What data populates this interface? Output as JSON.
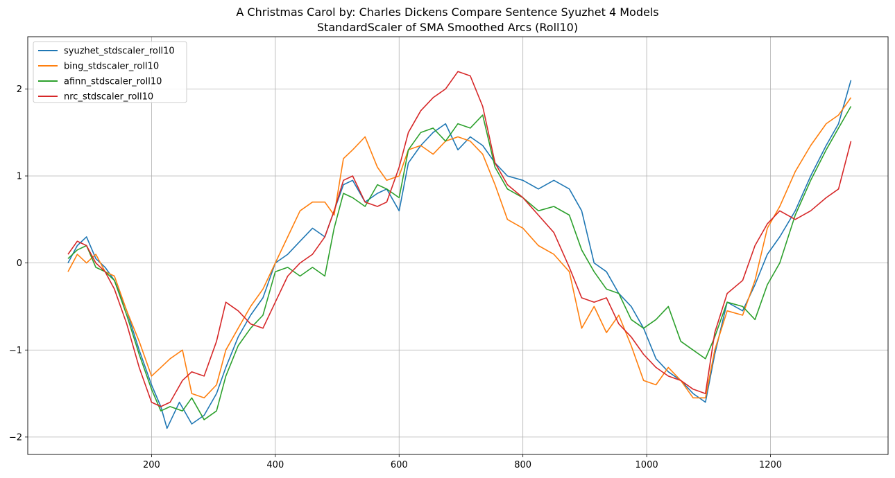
{
  "chart_data": {
    "type": "line",
    "title": "A Christmas Carol by: Charles Dickens Compare Sentence Syuzhet 4 Models",
    "subtitle": "StandardScaler of SMA Smoothed Arcs (Roll10)",
    "xlabel": "",
    "ylabel": "",
    "xlim": [
      0,
      1390
    ],
    "ylim": [
      -2.2,
      2.6
    ],
    "x_ticks": [
      200,
      400,
      600,
      800,
      1000,
      1200
    ],
    "y_ticks": [
      -2,
      -1,
      0,
      1,
      2
    ],
    "x_tick_labels": [
      "200",
      "400",
      "600",
      "800",
      "1000",
      "1200"
    ],
    "y_tick_labels": [
      "−2",
      "−1",
      "0",
      "1",
      "2"
    ],
    "grid": true,
    "legend_position": "top-left",
    "series": [
      {
        "name": "syuzhet_stdscaler_roll10",
        "color": "#1f77b4",
        "points": [
          [
            65,
            0.0
          ],
          [
            80,
            0.2
          ],
          [
            95,
            0.3
          ],
          [
            110,
            0.05
          ],
          [
            125,
            -0.05
          ],
          [
            140,
            -0.2
          ],
          [
            160,
            -0.55
          ],
          [
            180,
            -1.0
          ],
          [
            200,
            -1.4
          ],
          [
            215,
            -1.65
          ],
          [
            225,
            -1.9
          ],
          [
            245,
            -1.6
          ],
          [
            265,
            -1.85
          ],
          [
            285,
            -1.75
          ],
          [
            305,
            -1.5
          ],
          [
            320,
            -1.2
          ],
          [
            340,
            -0.85
          ],
          [
            360,
            -0.6
          ],
          [
            380,
            -0.4
          ],
          [
            400,
            0.0
          ],
          [
            420,
            0.1
          ],
          [
            440,
            0.25
          ],
          [
            460,
            0.4
          ],
          [
            480,
            0.3
          ],
          [
            495,
            0.6
          ],
          [
            510,
            0.9
          ],
          [
            525,
            0.95
          ],
          [
            545,
            0.7
          ],
          [
            565,
            0.8
          ],
          [
            580,
            0.85
          ],
          [
            600,
            0.6
          ],
          [
            615,
            1.15
          ],
          [
            635,
            1.35
          ],
          [
            655,
            1.5
          ],
          [
            675,
            1.6
          ],
          [
            695,
            1.3
          ],
          [
            715,
            1.45
          ],
          [
            735,
            1.35
          ],
          [
            755,
            1.15
          ],
          [
            775,
            1.0
          ],
          [
            800,
            0.95
          ],
          [
            825,
            0.85
          ],
          [
            850,
            0.95
          ],
          [
            875,
            0.85
          ],
          [
            895,
            0.6
          ],
          [
            915,
            0.0
          ],
          [
            935,
            -0.1
          ],
          [
            955,
            -0.35
          ],
          [
            975,
            -0.5
          ],
          [
            995,
            -0.75
          ],
          [
            1015,
            -1.1
          ],
          [
            1035,
            -1.25
          ],
          [
            1055,
            -1.35
          ],
          [
            1075,
            -1.5
          ],
          [
            1095,
            -1.6
          ],
          [
            1110,
            -1.05
          ],
          [
            1130,
            -0.45
          ],
          [
            1155,
            -0.55
          ],
          [
            1175,
            -0.25
          ],
          [
            1195,
            0.1
          ],
          [
            1215,
            0.3
          ],
          [
            1240,
            0.6
          ],
          [
            1265,
            1.0
          ],
          [
            1290,
            1.35
          ],
          [
            1310,
            1.6
          ],
          [
            1330,
            2.1
          ]
        ]
      },
      {
        "name": "bing_stdscaler_roll10",
        "color": "#ff7f0e",
        "points": [
          [
            65,
            -0.1
          ],
          [
            80,
            0.1
          ],
          [
            95,
            0.0
          ],
          [
            110,
            0.1
          ],
          [
            125,
            -0.1
          ],
          [
            140,
            -0.15
          ],
          [
            160,
            -0.55
          ],
          [
            180,
            -0.9
          ],
          [
            200,
            -1.3
          ],
          [
            215,
            -1.2
          ],
          [
            230,
            -1.1
          ],
          [
            250,
            -1.0
          ],
          [
            265,
            -1.5
          ],
          [
            285,
            -1.55
          ],
          [
            305,
            -1.4
          ],
          [
            320,
            -1.0
          ],
          [
            340,
            -0.75
          ],
          [
            360,
            -0.5
          ],
          [
            380,
            -0.3
          ],
          [
            400,
            0.0
          ],
          [
            420,
            0.3
          ],
          [
            440,
            0.6
          ],
          [
            460,
            0.7
          ],
          [
            480,
            0.7
          ],
          [
            495,
            0.55
          ],
          [
            510,
            1.2
          ],
          [
            525,
            1.3
          ],
          [
            545,
            1.45
          ],
          [
            565,
            1.1
          ],
          [
            580,
            0.95
          ],
          [
            600,
            1.0
          ],
          [
            615,
            1.3
          ],
          [
            635,
            1.35
          ],
          [
            655,
            1.25
          ],
          [
            675,
            1.4
          ],
          [
            695,
            1.45
          ],
          [
            715,
            1.4
          ],
          [
            735,
            1.25
          ],
          [
            755,
            0.9
          ],
          [
            775,
            0.5
          ],
          [
            800,
            0.4
          ],
          [
            825,
            0.2
          ],
          [
            850,
            0.1
          ],
          [
            875,
            -0.1
          ],
          [
            895,
            -0.75
          ],
          [
            915,
            -0.5
          ],
          [
            935,
            -0.8
          ],
          [
            955,
            -0.6
          ],
          [
            975,
            -0.95
          ],
          [
            995,
            -1.35
          ],
          [
            1015,
            -1.4
          ],
          [
            1035,
            -1.2
          ],
          [
            1055,
            -1.35
          ],
          [
            1075,
            -1.55
          ],
          [
            1095,
            -1.55
          ],
          [
            1110,
            -1.0
          ],
          [
            1130,
            -0.55
          ],
          [
            1155,
            -0.6
          ],
          [
            1175,
            -0.2
          ],
          [
            1195,
            0.4
          ],
          [
            1215,
            0.65
          ],
          [
            1240,
            1.05
          ],
          [
            1265,
            1.35
          ],
          [
            1290,
            1.6
          ],
          [
            1310,
            1.7
          ],
          [
            1330,
            1.9
          ]
        ]
      },
      {
        "name": "afinn_stdscaler_roll10",
        "color": "#2ca02c",
        "points": [
          [
            65,
            0.05
          ],
          [
            80,
            0.15
          ],
          [
            95,
            0.2
          ],
          [
            110,
            -0.05
          ],
          [
            125,
            -0.1
          ],
          [
            140,
            -0.2
          ],
          [
            160,
            -0.6
          ],
          [
            180,
            -1.05
          ],
          [
            200,
            -1.45
          ],
          [
            215,
            -1.7
          ],
          [
            230,
            -1.65
          ],
          [
            250,
            -1.7
          ],
          [
            265,
            -1.55
          ],
          [
            285,
            -1.8
          ],
          [
            305,
            -1.7
          ],
          [
            320,
            -1.3
          ],
          [
            340,
            -0.95
          ],
          [
            360,
            -0.75
          ],
          [
            380,
            -0.6
          ],
          [
            400,
            -0.1
          ],
          [
            420,
            -0.05
          ],
          [
            440,
            -0.15
          ],
          [
            460,
            -0.05
          ],
          [
            480,
            -0.15
          ],
          [
            495,
            0.4
          ],
          [
            510,
            0.8
          ],
          [
            525,
            0.75
          ],
          [
            545,
            0.65
          ],
          [
            565,
            0.9
          ],
          [
            580,
            0.85
          ],
          [
            600,
            0.75
          ],
          [
            615,
            1.3
          ],
          [
            635,
            1.5
          ],
          [
            655,
            1.55
          ],
          [
            675,
            1.4
          ],
          [
            695,
            1.6
          ],
          [
            715,
            1.55
          ],
          [
            735,
            1.7
          ],
          [
            755,
            1.1
          ],
          [
            775,
            0.85
          ],
          [
            800,
            0.75
          ],
          [
            825,
            0.6
          ],
          [
            850,
            0.65
          ],
          [
            875,
            0.55
          ],
          [
            895,
            0.15
          ],
          [
            915,
            -0.1
          ],
          [
            935,
            -0.3
          ],
          [
            955,
            -0.35
          ],
          [
            975,
            -0.65
          ],
          [
            995,
            -0.75
          ],
          [
            1015,
            -0.65
          ],
          [
            1035,
            -0.5
          ],
          [
            1055,
            -0.9
          ],
          [
            1075,
            -1.0
          ],
          [
            1095,
            -1.1
          ],
          [
            1110,
            -0.85
          ],
          [
            1130,
            -0.45
          ],
          [
            1155,
            -0.5
          ],
          [
            1175,
            -0.65
          ],
          [
            1195,
            -0.25
          ],
          [
            1215,
            0.0
          ],
          [
            1240,
            0.55
          ],
          [
            1265,
            0.95
          ],
          [
            1290,
            1.3
          ],
          [
            1310,
            1.55
          ],
          [
            1330,
            1.8
          ]
        ]
      },
      {
        "name": "nrc_stdscaler_roll10",
        "color": "#d62728",
        "points": [
          [
            65,
            0.1
          ],
          [
            80,
            0.25
          ],
          [
            95,
            0.2
          ],
          [
            110,
            0.0
          ],
          [
            125,
            -0.1
          ],
          [
            140,
            -0.3
          ],
          [
            160,
            -0.7
          ],
          [
            180,
            -1.2
          ],
          [
            200,
            -1.6
          ],
          [
            215,
            -1.65
          ],
          [
            230,
            -1.6
          ],
          [
            250,
            -1.35
          ],
          [
            265,
            -1.25
          ],
          [
            285,
            -1.3
          ],
          [
            305,
            -0.9
          ],
          [
            320,
            -0.45
          ],
          [
            340,
            -0.55
          ],
          [
            360,
            -0.7
          ],
          [
            380,
            -0.75
          ],
          [
            400,
            -0.45
          ],
          [
            420,
            -0.15
          ],
          [
            440,
            0.0
          ],
          [
            460,
            0.1
          ],
          [
            480,
            0.3
          ],
          [
            495,
            0.6
          ],
          [
            510,
            0.95
          ],
          [
            525,
            1.0
          ],
          [
            545,
            0.7
          ],
          [
            565,
            0.65
          ],
          [
            580,
            0.7
          ],
          [
            600,
            1.1
          ],
          [
            615,
            1.5
          ],
          [
            635,
            1.75
          ],
          [
            655,
            1.9
          ],
          [
            675,
            2.0
          ],
          [
            695,
            2.2
          ],
          [
            715,
            2.15
          ],
          [
            735,
            1.8
          ],
          [
            755,
            1.15
          ],
          [
            775,
            0.9
          ],
          [
            800,
            0.75
          ],
          [
            825,
            0.55
          ],
          [
            850,
            0.35
          ],
          [
            875,
            -0.05
          ],
          [
            895,
            -0.4
          ],
          [
            915,
            -0.45
          ],
          [
            935,
            -0.4
          ],
          [
            955,
            -0.7
          ],
          [
            975,
            -0.85
          ],
          [
            995,
            -1.05
          ],
          [
            1015,
            -1.2
          ],
          [
            1035,
            -1.3
          ],
          [
            1055,
            -1.35
          ],
          [
            1075,
            -1.45
          ],
          [
            1095,
            -1.5
          ],
          [
            1110,
            -0.8
          ],
          [
            1130,
            -0.35
          ],
          [
            1155,
            -0.2
          ],
          [
            1175,
            0.2
          ],
          [
            1195,
            0.45
          ],
          [
            1215,
            0.6
          ],
          [
            1240,
            0.5
          ],
          [
            1265,
            0.6
          ],
          [
            1290,
            0.75
          ],
          [
            1310,
            0.85
          ],
          [
            1330,
            1.4
          ]
        ]
      }
    ]
  }
}
